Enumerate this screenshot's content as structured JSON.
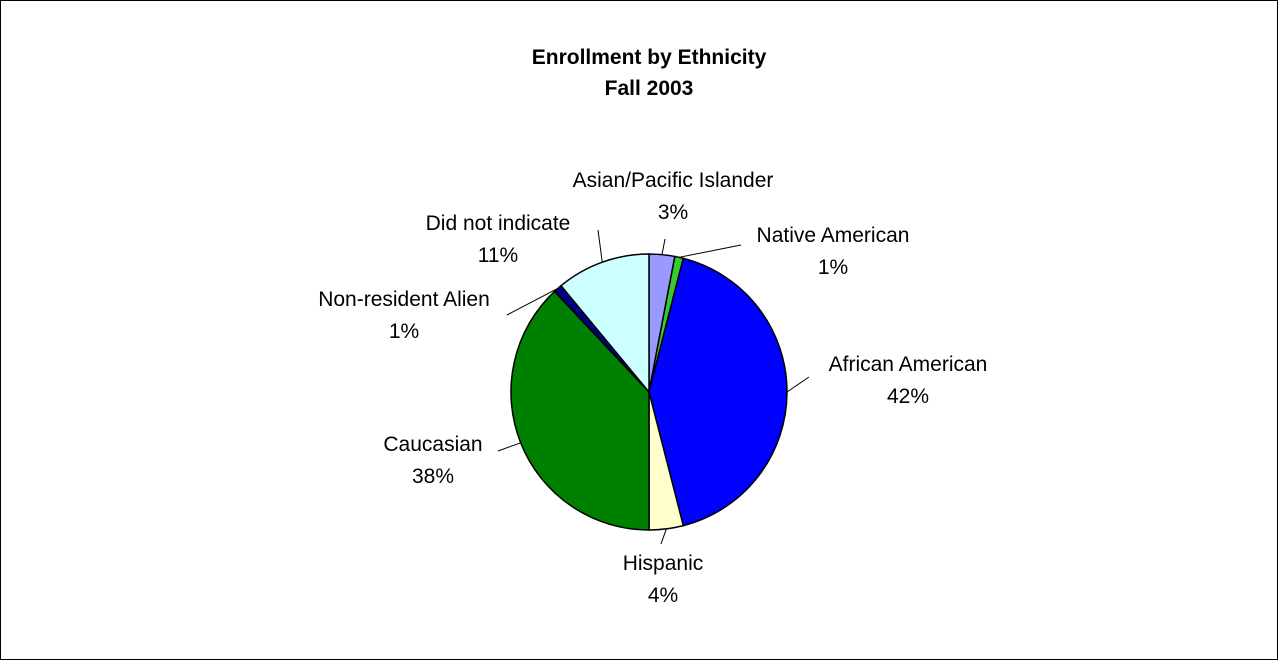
{
  "chart_data": {
    "type": "pie",
    "title": "Enrollment by Ethnicity",
    "subtitle": "Fall 2003",
    "slices": [
      {
        "name": "Asian/Pacific Islander",
        "value": 3,
        "value_label": "3%",
        "color": "#9999FF"
      },
      {
        "name": "Native American",
        "value": 1,
        "value_label": "1%",
        "color": "#33CC33"
      },
      {
        "name": "African American",
        "value": 42,
        "value_label": "42%",
        "color": "#0000FF"
      },
      {
        "name": "Hispanic",
        "value": 4,
        "value_label": "4%",
        "color": "#FFFFCC"
      },
      {
        "name": "Caucasian",
        "value": 38,
        "value_label": "38%",
        "color": "#008000"
      },
      {
        "name": "Non-resident Alien",
        "value": 1,
        "value_label": "1%",
        "color": "#000080"
      },
      {
        "name": "Did not indicate",
        "value": 11,
        "value_label": "11%",
        "color": "#CCFFFF"
      }
    ],
    "start_direction": "12 o'clock",
    "direction": "clockwise",
    "legend": "none",
    "labels": "outside with leader lines"
  }
}
